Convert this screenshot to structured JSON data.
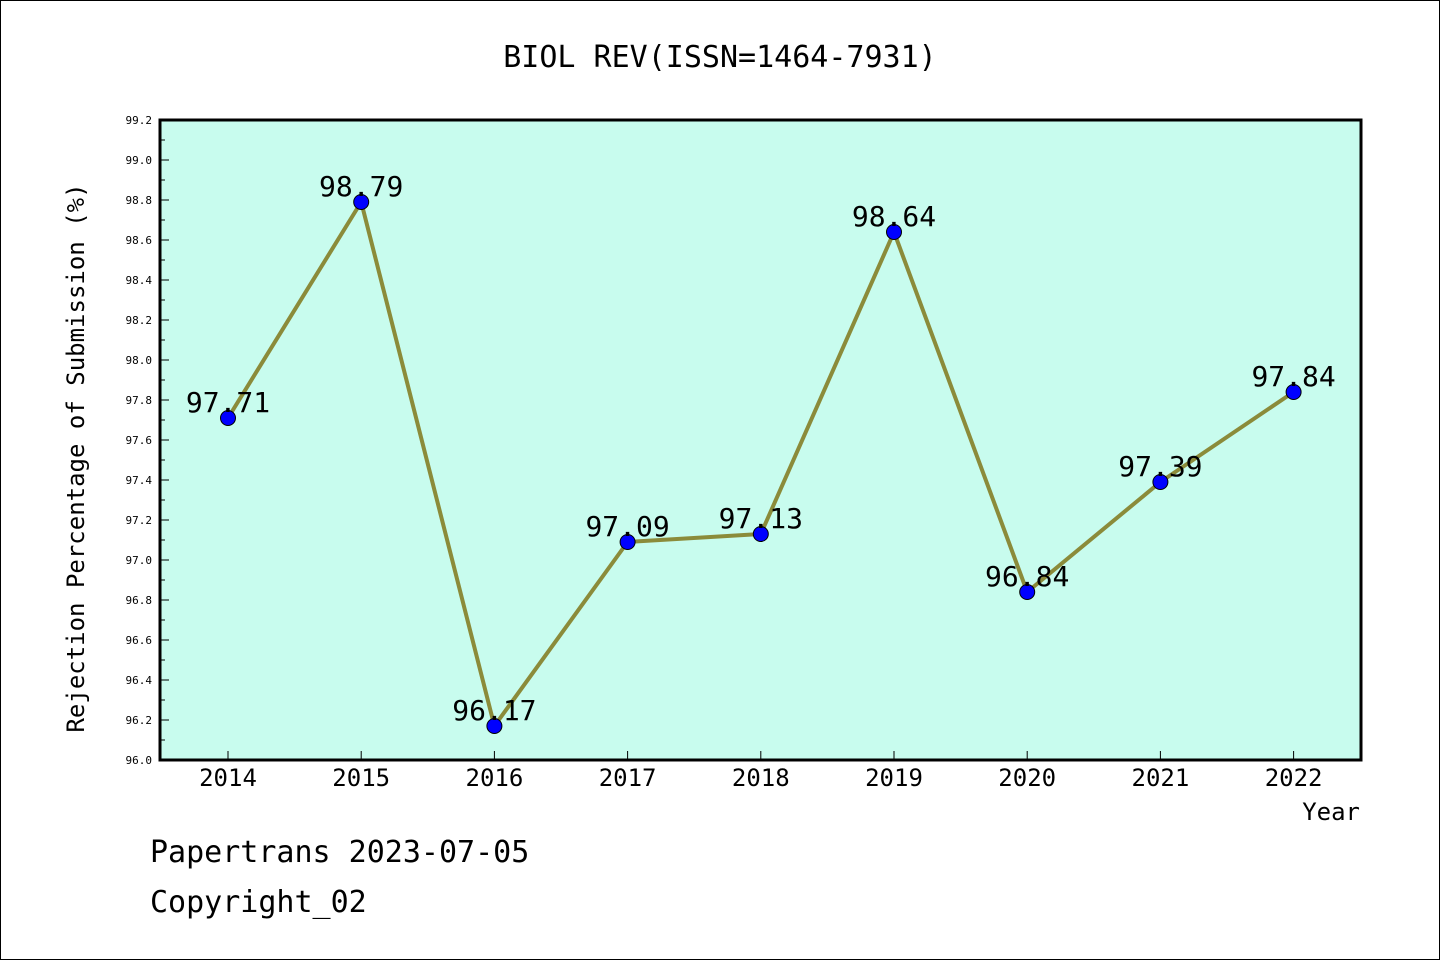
{
  "chart_data": {
    "type": "line",
    "title": "BIOL REV(ISSN=1464-7931)",
    "xlabel": "Year",
    "ylabel": "Rejection Percentage of Submission (%)",
    "categories": [
      "2014",
      "2015",
      "2016",
      "2017",
      "2018",
      "2019",
      "2020",
      "2021",
      "2022"
    ],
    "values": [
      97.71,
      98.79,
      96.17,
      97.09,
      97.13,
      98.64,
      96.84,
      97.39,
      97.84
    ],
    "data_labels": [
      "97.71",
      "98.79",
      "96.17",
      "97.09",
      "97.13",
      "98.64",
      "96.84",
      "97.39",
      "97.84"
    ],
    "ylim": [
      96.0,
      99.2
    ],
    "yticks": [
      "96.0",
      "96.2",
      "96.4",
      "96.6",
      "96.8",
      "97.0",
      "97.2",
      "97.4",
      "97.6",
      "97.8",
      "98.0",
      "98.2",
      "98.4",
      "98.6",
      "98.8",
      "99.0",
      "99.2"
    ],
    "grid": false,
    "colors": {
      "plot_background": "#c8fcee",
      "line": "#8b8b3a",
      "marker": "#0000ff"
    }
  },
  "footer": {
    "line1": "Papertrans 2023-07-05",
    "line2": "Copyright_02"
  }
}
